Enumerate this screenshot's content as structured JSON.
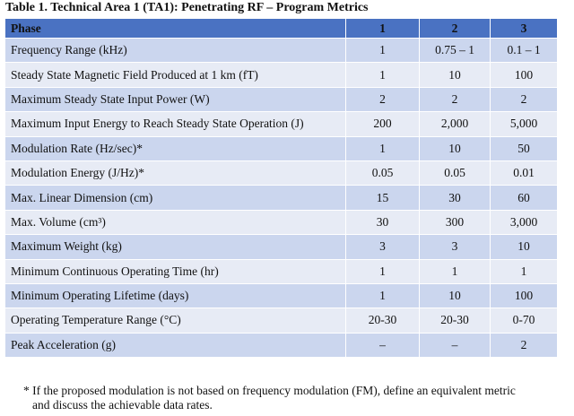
{
  "title": "Table 1. Technical Area 1 (TA1): Penetrating RF – Program Metrics",
  "table": {
    "header": [
      "Phase",
      "1",
      "2",
      "3"
    ],
    "rows": [
      [
        "Frequency Range (kHz)",
        "1",
        "0.75 – 1",
        "0.1 – 1"
      ],
      [
        "Steady State Magnetic Field Produced at 1 km (fT)",
        "1",
        "10",
        "100"
      ],
      [
        "Maximum Steady State Input Power (W)",
        "2",
        "2",
        "2"
      ],
      [
        "Maximum Input Energy to Reach Steady State Operation (J)",
        "200",
        "2,000",
        "5,000"
      ],
      [
        "Modulation Rate (Hz/sec)*",
        "1",
        "10",
        "50"
      ],
      [
        "Modulation Energy (J/Hz)*",
        "0.05",
        "0.05",
        "0.01"
      ],
      [
        "Max. Linear Dimension (cm)",
        "15",
        "30",
        "60"
      ],
      [
        "Max. Volume (cm³)",
        "30",
        "300",
        "3,000"
      ],
      [
        "Maximum Weight (kg)",
        "3",
        "3",
        "10"
      ],
      [
        "Minimum Continuous Operating Time (hr)",
        "1",
        "1",
        "1"
      ],
      [
        "Minimum Operating Lifetime (days)",
        "1",
        "10",
        "100"
      ],
      [
        "Operating Temperature Range (°C)",
        "20-30",
        "20-30",
        "0-70"
      ],
      [
        "Peak Acceleration (g)",
        "–",
        "–",
        "2"
      ]
    ]
  },
  "footnote": [
    "* If the proposed modulation is not based on frequency modulation (FM), define an equivalent metric",
    "and discuss the achievable data rates."
  ]
}
